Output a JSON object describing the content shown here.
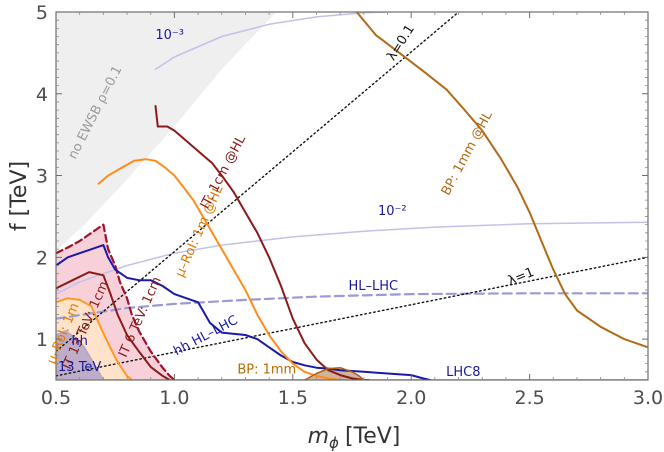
{
  "chart_data": {
    "type": "line",
    "xlabel": "m",
    "xlabel_sub": "ϕ",
    "xlabel_unit": "[TeV]",
    "ylabel": "f [TeV]",
    "xlim": [
      0.5,
      3.0
    ],
    "ylim": [
      0.5,
      5.0
    ],
    "xticks": [
      "0.5",
      "1.0",
      "1.5",
      "2.0",
      "2.5",
      "3.0"
    ],
    "yticks": [
      "1",
      "2",
      "3",
      "4",
      "5"
    ],
    "regions": [
      {
        "name": "no-ewsb-region",
        "label": "no EWSB ρ=0.1",
        "fill": "#e6e6e6",
        "stroke": "none",
        "opacity": 0.65,
        "points": [
          [
            0.5,
            2.08
          ],
          [
            0.62,
            2.4
          ],
          [
            0.8,
            2.95
          ],
          [
            1.0,
            3.6
          ],
          [
            1.2,
            4.3
          ],
          [
            1.43,
            5.0
          ],
          [
            0.5,
            5.0
          ]
        ],
        "label_x": 0.68,
        "label_y": 3.75,
        "label_angle": -63
      },
      {
        "name": "it13-region",
        "label": "",
        "fill": "#f5bccb",
        "stroke": "none",
        "opacity": 0.7,
        "points": [
          [
            0.5,
            2.05
          ],
          [
            0.55,
            2.12
          ],
          [
            0.6,
            2.2
          ],
          [
            0.65,
            2.3
          ],
          [
            0.7,
            2.4
          ],
          [
            0.72,
            2.1
          ],
          [
            0.75,
            1.9
          ],
          [
            0.77,
            1.7
          ],
          [
            0.8,
            1.5
          ],
          [
            0.82,
            1.3
          ],
          [
            0.85,
            1.1
          ],
          [
            0.9,
            0.85
          ],
          [
            0.95,
            0.65
          ],
          [
            0.98,
            0.55
          ],
          [
            1.0,
            0.5
          ],
          [
            0.5,
            0.5
          ]
        ]
      },
      {
        "name": "rel-region",
        "label": "",
        "fill": "#ffe7c6",
        "stroke": "none",
        "opacity": 0.8,
        "points": [
          [
            0.5,
            1.45
          ],
          [
            0.55,
            1.5
          ],
          [
            0.6,
            1.48
          ],
          [
            0.65,
            1.4
          ],
          [
            0.68,
            1.2
          ],
          [
            0.72,
            0.95
          ],
          [
            0.76,
            0.72
          ],
          [
            0.8,
            0.55
          ],
          [
            0.82,
            0.5
          ],
          [
            0.5,
            0.5
          ]
        ]
      },
      {
        "name": "hh13-region",
        "label": "",
        "fill": "#b3a3c9",
        "stroke": "none",
        "opacity": 0.85,
        "points": [
          [
            0.5,
            1.05
          ],
          [
            0.54,
            1.1
          ],
          [
            0.58,
            1.02
          ],
          [
            0.62,
            0.9
          ],
          [
            0.66,
            0.7
          ],
          [
            0.69,
            0.55
          ],
          [
            0.7,
            0.5
          ],
          [
            0.5,
            0.5
          ]
        ]
      },
      {
        "name": "bp1mm-region",
        "label": "",
        "fill": "#c9a488",
        "stroke": "none",
        "opacity": 0.85,
        "points": [
          [
            1.55,
            0.5
          ],
          [
            1.6,
            0.58
          ],
          [
            1.65,
            0.64
          ],
          [
            1.7,
            0.65
          ],
          [
            1.75,
            0.6
          ],
          [
            1.78,
            0.55
          ],
          [
            1.8,
            0.5
          ]
        ]
      }
    ],
    "series": [
      {
        "name": "lhc8-line",
        "label": "LHC8",
        "color": "#bfbfe9",
        "dash": "",
        "width": 2,
        "x": [
          0.5,
          3.0
        ],
        "y": [
          0.5,
          0.5
        ],
        "label_x": 2.22,
        "label_y": 0.55,
        "label_color": "#1a1a99",
        "label_angle": 0
      },
      {
        "name": "contour-1e-3",
        "label": "10⁻³",
        "color": "#c2c2ea",
        "dash": "",
        "width": 1.5,
        "x": [
          0.92,
          1.0,
          1.2,
          1.4,
          1.6,
          1.8,
          1.9
        ],
        "y": [
          4.3,
          4.45,
          4.7,
          4.85,
          4.94,
          4.99,
          5.0
        ],
        "label_x": 0.98,
        "label_y": 4.67,
        "label_color": "#1a1a99",
        "label_angle": 0
      },
      {
        "name": "contour-1e-2",
        "label": "10⁻²",
        "color": "#c2c2ea",
        "dash": "",
        "width": 1.5,
        "x": [
          0.5,
          0.6,
          0.8,
          1.0,
          1.2,
          1.5,
          1.8,
          2.1,
          2.5,
          3.0
        ],
        "y": [
          1.55,
          1.7,
          1.9,
          2.05,
          2.15,
          2.25,
          2.32,
          2.37,
          2.41,
          2.43
        ],
        "label_x": 1.92,
        "label_y": 2.52,
        "label_color": "#1a1a99",
        "label_angle": 0
      },
      {
        "name": "hl-lhc-line",
        "label": "HL–LHC",
        "color": "#9a9ad6",
        "dash": "9,5",
        "width": 2.2,
        "x": [
          0.5,
          0.8,
          1.0,
          1.3,
          1.6,
          2.0,
          2.5,
          3.0
        ],
        "y": [
          1.25,
          1.38,
          1.43,
          1.48,
          1.52,
          1.55,
          1.56,
          1.56
        ],
        "label_x": 1.84,
        "label_y": 1.6,
        "label_color": "#1a1a99",
        "label_angle": 0
      },
      {
        "name": "lambda-0.1-line",
        "label": "λ=0.1",
        "color": "#111111",
        "dash": "1.5,3",
        "width": 1.4,
        "x": [
          0.5,
          2.2
        ],
        "y": [
          0.85,
          5.0
        ],
        "label_x": 1.97,
        "label_y": 4.6,
        "label_color": "#111111",
        "label_angle": -58
      },
      {
        "name": "lambda-1-line",
        "label": "λ=1",
        "color": "#111111",
        "dash": "1.5,3",
        "width": 1.4,
        "x": [
          0.5,
          3.0
        ],
        "y": [
          0.55,
          2.0
        ],
        "label_x": 2.47,
        "label_y": 1.72,
        "label_color": "#111111",
        "label_angle": -22
      },
      {
        "name": "hh13-boundary",
        "label": "",
        "color": "#b3a3c9",
        "dash": "",
        "width": 1.5,
        "x": [
          0.5,
          0.54,
          0.58,
          0.62,
          0.66,
          0.69,
          0.7
        ],
        "y": [
          1.05,
          1.1,
          1.02,
          0.9,
          0.7,
          0.55,
          0.5
        ],
        "label_x": null,
        "label_y": null,
        "label_color": "#1a1a99",
        "label_angle": 0
      },
      {
        "name": "rel-1m-line",
        "label": "μ–RoI: 1m",
        "color": "#ff9a1f",
        "dash": "",
        "width": 2,
        "x": [
          0.5,
          0.55,
          0.6,
          0.65,
          0.68,
          0.72,
          0.76,
          0.8,
          0.82
        ],
        "y": [
          1.45,
          1.5,
          1.48,
          1.4,
          1.2,
          0.95,
          0.72,
          0.55,
          0.5
        ],
        "label_x": 0.545,
        "label_y": 1.05,
        "label_color": "#e07b00",
        "label_angle": -68
      },
      {
        "name": "it13-1cm-line",
        "label": "IT 13 TeV: 1cm",
        "color": "#8b1a1a",
        "dash": "",
        "width": 2,
        "x": [
          0.5,
          0.57,
          0.64,
          0.7,
          0.73,
          0.76,
          0.8,
          0.85,
          0.9,
          0.95,
          0.98
        ],
        "y": [
          1.62,
          1.72,
          1.82,
          1.78,
          1.55,
          1.3,
          1.05,
          0.85,
          0.66,
          0.55,
          0.5
        ],
        "label_x": 0.64,
        "label_y": 1.15,
        "label_color": "#8b1a1a",
        "label_angle": -66
      },
      {
        "name": "it6-1cm-line",
        "label": "IT 6 TeV: 1cm",
        "color": "#a0112b",
        "dash": "7,4",
        "width": 2.2,
        "x": [
          0.5,
          0.55,
          0.6,
          0.65,
          0.7,
          0.72,
          0.75,
          0.77,
          0.8,
          0.82,
          0.85,
          0.9,
          0.95,
          0.98,
          1.0
        ],
        "y": [
          2.05,
          2.12,
          2.2,
          2.3,
          2.4,
          2.1,
          1.9,
          1.7,
          1.5,
          1.3,
          1.1,
          0.85,
          0.65,
          0.55,
          0.5
        ],
        "label_x": 0.87,
        "label_y": 1.25,
        "label_color": "#8b1a1a",
        "label_angle": -66
      },
      {
        "name": "hh-hl-lhc-line",
        "label": "hh HL–LHC",
        "color": "#1a1aa6",
        "dash": "",
        "width": 2,
        "x": [
          0.5,
          0.55,
          0.6,
          0.65,
          0.7,
          0.72,
          0.75,
          0.8,
          0.85,
          0.9,
          0.95,
          1.0,
          1.05,
          1.1,
          1.15,
          1.2,
          1.3,
          1.35,
          1.4,
          1.45,
          1.5,
          1.55,
          1.6,
          1.65,
          1.7,
          1.8,
          1.9,
          2.0,
          2.05,
          2.08
        ],
        "y": [
          1.9,
          2.0,
          2.05,
          2.1,
          2.15,
          2.0,
          1.85,
          1.75,
          1.72,
          1.72,
          1.65,
          1.55,
          1.5,
          1.45,
          1.2,
          1.08,
          1.05,
          1.0,
          0.9,
          0.8,
          0.72,
          0.68,
          0.65,
          0.64,
          0.62,
          0.6,
          0.58,
          0.56,
          0.52,
          0.5
        ],
        "label_x": 1.14,
        "label_y": 1.0,
        "label_color": "#1a1aa6",
        "label_angle": -28
      },
      {
        "name": "rel-1m-hl-line",
        "label": "μ–RoI: 1m @HL",
        "color": "#ff8c1a",
        "dash": "",
        "width": 2,
        "x": [
          0.68,
          0.72,
          0.78,
          0.83,
          0.88,
          0.92,
          0.96,
          1.0,
          1.04,
          1.08,
          1.12,
          1.16,
          1.2,
          1.25,
          1.3,
          1.35,
          1.4,
          1.45,
          1.5,
          1.55,
          1.6,
          1.65,
          1.7,
          1.72
        ],
        "y": [
          2.9,
          3.0,
          3.1,
          3.18,
          3.2,
          3.18,
          3.1,
          3.0,
          2.85,
          2.7,
          2.5,
          2.3,
          2.1,
          1.85,
          1.6,
          1.3,
          1.05,
          0.85,
          0.7,
          0.6,
          0.55,
          0.52,
          0.5,
          0.5
        ],
        "label_x": 1.12,
        "label_y": 2.3,
        "label_color": "#e07b00",
        "label_angle": -66
      },
      {
        "name": "it-1cm-hl-line",
        "label": "IT: 1cm @HL",
        "color": "#8b1a1a",
        "dash": "",
        "width": 2,
        "x": [
          0.92,
          0.93,
          0.97,
          1.0,
          1.04,
          1.08,
          1.12,
          1.16,
          1.2,
          1.25,
          1.3,
          1.35,
          1.4,
          1.45,
          1.5,
          1.55,
          1.6,
          1.65,
          1.7,
          1.75,
          1.8,
          1.82
        ],
        "y": [
          3.85,
          3.6,
          3.6,
          3.55,
          3.45,
          3.35,
          3.25,
          3.15,
          3.0,
          2.8,
          2.55,
          2.3,
          2.0,
          1.65,
          1.25,
          0.95,
          0.75,
          0.62,
          0.56,
          0.52,
          0.5,
          0.5
        ],
        "label_x": 1.22,
        "label_y": 3.02,
        "label_color": "#8b1a1a",
        "label_angle": -62
      },
      {
        "name": "bp-1mm-line",
        "label": "BP: 1mm",
        "color": "#a8641a",
        "dash": "",
        "width": 1.5,
        "x": [
          1.55,
          1.6,
          1.65,
          1.7,
          1.75,
          1.78,
          1.8
        ],
        "y": [
          0.5,
          0.58,
          0.64,
          0.65,
          0.6,
          0.55,
          0.5
        ],
        "label_x": 1.39,
        "label_y": 0.58,
        "label_color": "#b86b00",
        "label_angle": 0
      },
      {
        "name": "bp-1mm-hl-line",
        "label": "BP: 1mm @HL",
        "color": "#b26a16",
        "dash": "",
        "width": 2,
        "x": [
          1.77,
          1.85,
          1.95,
          2.05,
          2.15,
          2.22,
          2.3,
          2.38,
          2.45,
          2.5,
          2.55,
          2.6,
          2.65,
          2.7,
          2.8,
          2.9,
          3.0
        ],
        "y": [
          5.0,
          4.72,
          4.5,
          4.28,
          4.05,
          3.82,
          3.55,
          3.2,
          2.85,
          2.55,
          2.2,
          1.85,
          1.55,
          1.35,
          1.15,
          1.0,
          0.9
        ],
        "label_x": 2.25,
        "label_y": 3.25,
        "label_color": "#b26a16",
        "label_angle": -62
      }
    ],
    "text_labels": [
      {
        "name": "hh13-label-line1",
        "text": "hh",
        "x": 0.6,
        "y": 0.93,
        "color": "#1a1a99",
        "size": 13
      },
      {
        "name": "hh13-label-line2",
        "text": "13 TeV",
        "x": 0.6,
        "y": 0.61,
        "color": "#1a1a99",
        "size": 13
      }
    ]
  }
}
